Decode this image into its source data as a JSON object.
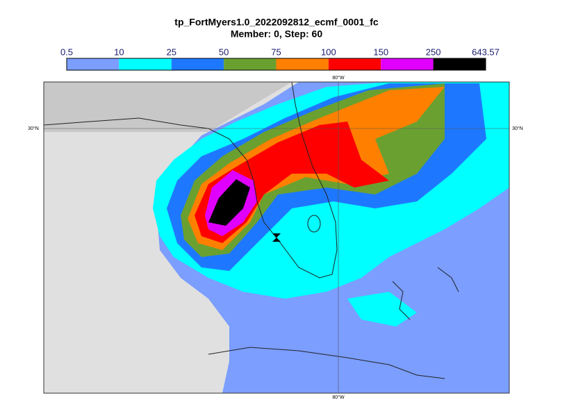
{
  "title": "tp_FortMyers1.0_2022092812_ecmf_0001_fc",
  "subtitle": "Member: 0, Step: 60",
  "colorbar": {
    "bounds": [
      0.5,
      10,
      25,
      50,
      75,
      100,
      150,
      250,
      643.57
    ],
    "colors": [
      "#7b9eff",
      "#00ffff",
      "#1e78ff",
      "#6aa030",
      "#ff8000",
      "#ff0000",
      "#e000ff",
      "#000000"
    ]
  },
  "map": {
    "lat_labels": [
      "30°N",
      "30°N"
    ],
    "lon_labels": [
      "80°W",
      "80°W"
    ]
  }
}
